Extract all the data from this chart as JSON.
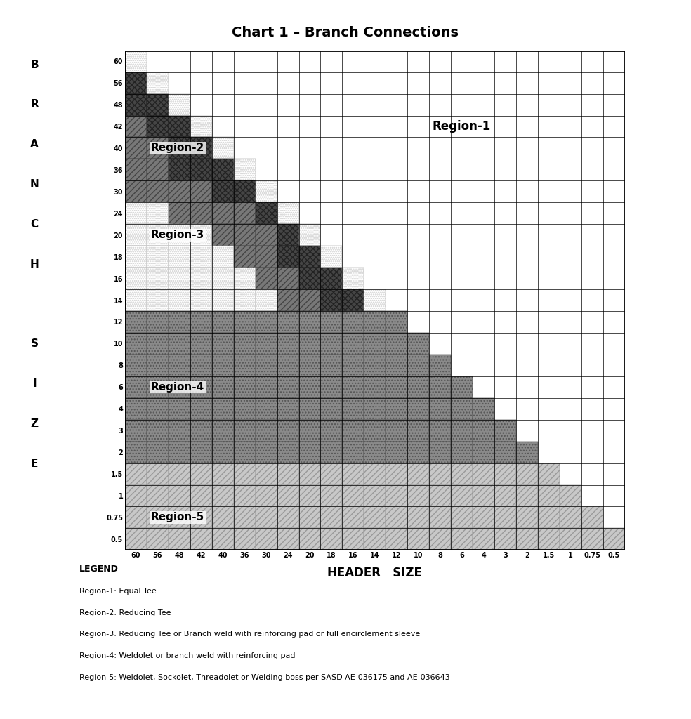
{
  "title": "Chart 1 – Branch Connections",
  "xlabel": "HEADER   SIZE",
  "sizes": [
    60,
    56,
    48,
    42,
    40,
    36,
    30,
    24,
    20,
    18,
    16,
    14,
    12,
    10,
    8,
    6,
    4,
    3,
    2,
    1.5,
    1.0,
    0.75,
    0.5
  ],
  "size_labels": [
    "60",
    "56",
    "48",
    "42",
    "40",
    "36",
    "30",
    "24",
    "20",
    "18",
    "16",
    "14",
    "12",
    "10",
    "8",
    "6",
    "4",
    "3",
    "2",
    "1.5",
    "1",
    "0.75",
    "0.5"
  ],
  "branch_label": [
    "B",
    "R",
    "A",
    "N",
    "C",
    "H",
    "",
    "S",
    "I",
    "Z",
    "E"
  ],
  "legend_title": "LEGEND",
  "legend_items": [
    "Region-1: Equal Tee",
    "Region-2: Reducing Tee",
    "Region-3: Reducing Tee or Branch weld with reinforcing pad or full encirclement sleeve",
    "Region-4: Weldolet or branch weld with reinforcing pad",
    "Region-5: Weldolet, Sockolet, Threadolet or Welding boss per SASD AE-036175 and AE-036643"
  ],
  "region2_color": "#444444",
  "region3_color": "#888888",
  "region4_color": "#999999",
  "region5_color": "#cccccc",
  "region1_color": "#ffffff",
  "grid_color": "#000000",
  "bg_color": "#ffffff"
}
